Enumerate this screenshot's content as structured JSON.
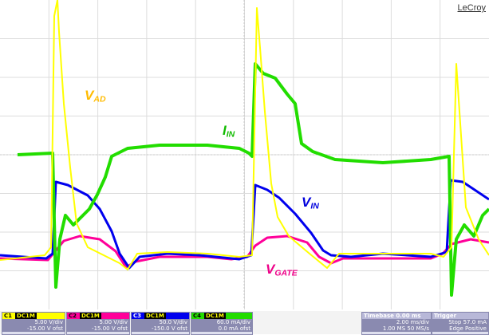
{
  "brand": "LeCroy",
  "traces": {
    "vad": {
      "label": "V",
      "sub": "AD",
      "color": "#ffff00"
    },
    "iin": {
      "label": "I",
      "sub": "IN",
      "color": "#22dd00"
    },
    "vin": {
      "label": "V",
      "sub": "IN",
      "color": "#0000ee"
    },
    "vgate": {
      "label": "V",
      "sub": "GATE",
      "color": "#ff0099"
    }
  },
  "channels": [
    {
      "name": "C1",
      "tag": "DC1M",
      "vdiv": "5.00 V/div",
      "ofst": "-15.00 V ofst",
      "color": "#ffff00"
    },
    {
      "name": "C2",
      "tag": "DC1M",
      "vdiv": "5.00 V/div",
      "ofst": "-15.00 V ofst",
      "color": "#ff0099"
    },
    {
      "name": "C3",
      "tag": "DC1M",
      "vdiv": "50.0 V/div",
      "ofst": "-150.0 V ofst",
      "color": "#0000ee"
    },
    {
      "name": "C4",
      "tag": "DC1M",
      "vdiv": "60.0 mA/div",
      "ofst": "0.0 mA ofst",
      "color": "#22dd00"
    }
  ],
  "timebase": {
    "label": "Timebase",
    "value": "0.00 ms",
    "tdiv": "2.00 ms/div",
    "samples": "1.00 MS",
    "rate": "50 MS/s"
  },
  "trigger": {
    "label": "Trigger",
    "mode": "Stop",
    "edge": "Edge",
    "level": "57.0 mA",
    "slope": "Positive"
  }
}
